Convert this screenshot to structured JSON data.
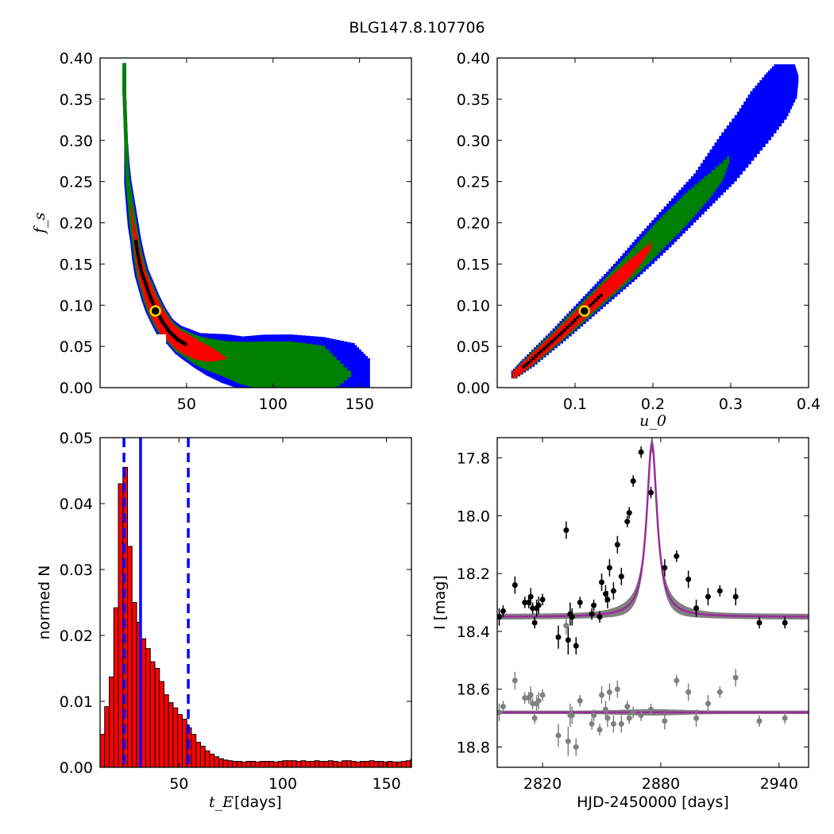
{
  "figure": {
    "title": "BLG147.8.107706"
  },
  "colors": {
    "blue": "#0000ff",
    "green": "#008000",
    "red": "#ff0000",
    "black": "#000000",
    "marker": "#ffd700",
    "hist": "#ff0000",
    "model": "#9b2c9b",
    "model_band": "#808080",
    "data1": "#000000",
    "data2": "#808080"
  },
  "chart_data": [
    {
      "id": "tE_vs_fs",
      "type": "heatmap",
      "title": "",
      "xlabel": "",
      "ylabel": "f_s",
      "xlim": [
        0,
        180
      ],
      "ylim": [
        0.0,
        0.4
      ],
      "xticks": [
        50,
        100,
        150
      ],
      "yticks": [
        0.0,
        0.05,
        0.1,
        0.15,
        0.2,
        0.25,
        0.3,
        0.35,
        0.4
      ],
      "ytick_labels": [
        "0.00",
        "0.05",
        "0.10",
        "0.15",
        "0.20",
        "0.25",
        "0.30",
        "0.35",
        "0.40"
      ],
      "levels": [
        "blue",
        "green",
        "red",
        "black"
      ],
      "best_fit": {
        "x": 32,
        "y": 0.093
      },
      "ridge": [
        {
          "x": 14,
          "y": 0.39,
          "w": [
            1,
            1,
            0,
            0
          ]
        },
        {
          "x": 14,
          "y": 0.36,
          "w": [
            1,
            1,
            0,
            0
          ]
        },
        {
          "x": 14.5,
          "y": 0.33,
          "w": [
            1,
            1,
            0,
            0
          ]
        },
        {
          "x": 15,
          "y": 0.3,
          "w": [
            1,
            1,
            0,
            0
          ]
        },
        {
          "x": 15.5,
          "y": 0.27,
          "w": [
            1.5,
            1,
            0,
            0
          ]
        },
        {
          "x": 16,
          "y": 0.25,
          "w": [
            2,
            1.2,
            0,
            0
          ]
        },
        {
          "x": 17.5,
          "y": 0.225,
          "w": [
            2.5,
            1.5,
            0,
            0
          ]
        },
        {
          "x": 19,
          "y": 0.2,
          "w": [
            3,
            2,
            0.5,
            0
          ]
        },
        {
          "x": 20.5,
          "y": 0.18,
          "w": [
            3,
            2,
            1,
            0
          ]
        },
        {
          "x": 22,
          "y": 0.16,
          "w": [
            3.5,
            2.5,
            1.5,
            0.5
          ]
        },
        {
          "x": 24,
          "y": 0.14,
          "w": [
            4,
            3,
            2,
            0.8
          ]
        },
        {
          "x": 26.5,
          "y": 0.125,
          "w": [
            4.5,
            3.5,
            2.5,
            0.8
          ]
        },
        {
          "x": 29,
          "y": 0.11,
          "w": [
            5,
            4,
            3,
            1
          ]
        },
        {
          "x": 32,
          "y": 0.095,
          "w": [
            5.5,
            4.5,
            3.5,
            1
          ]
        },
        {
          "x": 36,
          "y": 0.08,
          "w": [
            6,
            5,
            4,
            1
          ]
        },
        {
          "x": 40,
          "y": 0.068,
          "w": [
            7,
            5.5,
            4.5,
            1
          ]
        },
        {
          "x": 45,
          "y": 0.058,
          "w": [
            8,
            6.5,
            5,
            1
          ]
        },
        {
          "x": 50,
          "y": 0.052,
          "w": [
            9,
            7,
            5.5,
            0
          ]
        },
        {
          "x": 56,
          "y": 0.045,
          "w": [
            10,
            8,
            5,
            0
          ]
        },
        {
          "x": 63,
          "y": 0.04,
          "w": [
            12,
            9,
            4,
            0
          ]
        },
        {
          "x": 72,
          "y": 0.035,
          "w": [
            14,
            10,
            0,
            0
          ]
        },
        {
          "x": 82,
          "y": 0.03,
          "w": [
            15,
            12,
            0,
            0
          ]
        },
        {
          "x": 95,
          "y": 0.026,
          "w": [
            18,
            14,
            0,
            0
          ]
        },
        {
          "x": 110,
          "y": 0.022,
          "w": [
            20,
            16,
            0,
            0
          ]
        },
        {
          "x": 128,
          "y": 0.019,
          "w": [
            20,
            15,
            0,
            0
          ]
        },
        {
          "x": 145,
          "y": 0.016,
          "w": [
            18,
            0,
            0,
            0
          ]
        },
        {
          "x": 155,
          "y": 0.016,
          "w": [
            8,
            0,
            0,
            0
          ]
        }
      ]
    },
    {
      "id": "u0_vs_fs",
      "type": "heatmap",
      "title": "",
      "xlabel": "u_0",
      "ylabel": "",
      "xlim": [
        0.0,
        0.4
      ],
      "ylim": [
        0.0,
        0.4
      ],
      "xticks": [
        0.1,
        0.2,
        0.3,
        0.4
      ],
      "xtick_labels": [
        "0.1",
        "0.2",
        "0.3",
        "0.4"
      ],
      "yticks": [
        0.0,
        0.05,
        0.1,
        0.15,
        0.2,
        0.25,
        0.3,
        0.35,
        0.4
      ],
      "ytick_labels": [
        "0.00",
        "0.05",
        "0.10",
        "0.15",
        "0.20",
        "0.25",
        "0.30",
        "0.35",
        "0.40"
      ],
      "levels": [
        "blue",
        "green",
        "red",
        "black"
      ],
      "best_fit": {
        "x": 0.112,
        "y": 0.093
      },
      "band": [
        {
          "x": 0.022,
          "y": 0.016,
          "w": [
            0.004,
            0.003,
            0.002,
            0
          ]
        },
        {
          "x": 0.04,
          "y": 0.03,
          "w": [
            0.008,
            0.006,
            0.004,
            0.001
          ]
        },
        {
          "x": 0.06,
          "y": 0.047,
          "w": [
            0.01,
            0.008,
            0.005,
            0.002
          ]
        },
        {
          "x": 0.08,
          "y": 0.064,
          "w": [
            0.012,
            0.009,
            0.006,
            0.002
          ]
        },
        {
          "x": 0.1,
          "y": 0.082,
          "w": [
            0.014,
            0.011,
            0.007,
            0.002
          ]
        },
        {
          "x": 0.12,
          "y": 0.1,
          "w": [
            0.016,
            0.012,
            0.008,
            0.002
          ]
        },
        {
          "x": 0.14,
          "y": 0.118,
          "w": [
            0.018,
            0.013,
            0.009,
            0
          ]
        },
        {
          "x": 0.16,
          "y": 0.136,
          "w": [
            0.02,
            0.015,
            0.009,
            0
          ]
        },
        {
          "x": 0.18,
          "y": 0.155,
          "w": [
            0.022,
            0.016,
            0.006,
            0
          ]
        },
        {
          "x": 0.2,
          "y": 0.175,
          "w": [
            0.024,
            0.017,
            0,
            0
          ]
        },
        {
          "x": 0.22,
          "y": 0.195,
          "w": [
            0.025,
            0.018,
            0,
            0
          ]
        },
        {
          "x": 0.24,
          "y": 0.215,
          "w": [
            0.026,
            0.017,
            0,
            0
          ]
        },
        {
          "x": 0.26,
          "y": 0.235,
          "w": [
            0.027,
            0.015,
            0,
            0
          ]
        },
        {
          "x": 0.28,
          "y": 0.255,
          "w": [
            0.028,
            0.01,
            0,
            0
          ]
        },
        {
          "x": 0.3,
          "y": 0.28,
          "w": [
            0.03,
            0,
            0,
            0
          ]
        },
        {
          "x": 0.32,
          "y": 0.305,
          "w": [
            0.032,
            0,
            0,
            0
          ]
        },
        {
          "x": 0.34,
          "y": 0.33,
          "w": [
            0.032,
            0,
            0,
            0
          ]
        },
        {
          "x": 0.355,
          "y": 0.355,
          "w": [
            0.03,
            0,
            0,
            0
          ]
        },
        {
          "x": 0.365,
          "y": 0.375,
          "w": [
            0.022,
            0,
            0,
            0
          ]
        },
        {
          "x": 0.37,
          "y": 0.39,
          "w": [
            0.012,
            0,
            0,
            0
          ]
        }
      ]
    },
    {
      "id": "tE_histogram",
      "type": "bar",
      "title": "",
      "xlabel": "t_E",
      "xlabel_suffix": " [days]",
      "ylabel": "normed N",
      "xlim": [
        12,
        162
      ],
      "ylim": [
        0.0,
        0.05
      ],
      "xticks": [
        50,
        100,
        150
      ],
      "yticks": [
        0.0,
        0.01,
        0.02,
        0.03,
        0.04,
        0.05
      ],
      "ytick_labels": [
        "0.00",
        "0.01",
        "0.02",
        "0.03",
        "0.04",
        "0.05"
      ],
      "bin_start": 12,
      "bin_width": 2.2,
      "values": [
        0.005,
        0.0092,
        0.0137,
        0.0242,
        0.043,
        0.0455,
        0.0335,
        0.025,
        0.022,
        0.0195,
        0.018,
        0.016,
        0.015,
        0.013,
        0.011,
        0.0098,
        0.009,
        0.008,
        0.0073,
        0.006,
        0.005,
        0.0038,
        0.0032,
        0.0025,
        0.002,
        0.0016,
        0.0013,
        0.0011,
        0.001,
        0.0009,
        0.0009,
        0.0008,
        0.0009,
        0.0009,
        0.0008,
        0.0009,
        0.0009,
        0.0009,
        0.0008,
        0.0009,
        0.001,
        0.001,
        0.001,
        0.0009,
        0.001,
        0.0009,
        0.0009,
        0.001,
        0.0009,
        0.0009,
        0.001,
        0.0009,
        0.0008,
        0.001,
        0.001,
        0.0009,
        0.0008,
        0.0009,
        0.0009,
        0.001,
        0.0009,
        0.0009,
        0.0008,
        0.0009,
        0.0008,
        0.0008,
        0.0009,
        0.001,
        0.0012,
        0.0011,
        0.0009,
        0.0007,
        0.0006,
        0.0005,
        0.0004,
        0.0004,
        0.0002,
        0.0002
      ],
      "median_line": 31.5,
      "dashed_lines": [
        23.5,
        54.5
      ]
    },
    {
      "id": "lightcurve",
      "type": "scatter",
      "title": "",
      "xlabel": "HJD-2450000 [days]",
      "ylabel": "I [mag]",
      "xlim": [
        2797,
        2955
      ],
      "ylim": [
        18.87,
        17.73
      ],
      "xticks": [
        2820,
        2880,
        2940
      ],
      "yticks": [
        17.8,
        18.0,
        18.2,
        18.4,
        18.6,
        18.8
      ],
      "ytick_labels": [
        "17.8",
        "18.0",
        "18.2",
        "18.4",
        "18.6",
        "18.8"
      ],
      "model": {
        "t0": 2875.5,
        "baseline": 18.35,
        "amplitude": 0.6,
        "width": 3.2,
        "residual_level": 18.68
      },
      "series": [
        {
          "points": [
            [
              2798,
              18.35,
              0.03
            ],
            [
              2800,
              18.33,
              0.02
            ],
            [
              2806,
              18.24,
              0.03
            ],
            [
              2811,
              18.3,
              0.02
            ],
            [
              2813,
              18.3,
              0.02
            ],
            [
              2814,
              18.28,
              0.03
            ],
            [
              2815,
              18.32,
              0.02
            ],
            [
              2816,
              18.37,
              0.02
            ],
            [
              2817,
              18.32,
              0.03
            ],
            [
              2818,
              18.31,
              0.03
            ],
            [
              2820,
              18.29,
              0.02
            ],
            [
              2828,
              18.42,
              0.04
            ],
            [
              2832,
              18.05,
              0.03
            ],
            [
              2833,
              18.43,
              0.05
            ],
            [
              2834,
              18.34,
              0.04
            ],
            [
              2835,
              18.35,
              0.03
            ],
            [
              2837,
              18.45,
              0.03
            ],
            [
              2839,
              18.3,
              0.02
            ],
            [
              2845,
              18.34,
              0.02
            ],
            [
              2846,
              18.31,
              0.02
            ],
            [
              2849,
              18.35,
              0.02
            ],
            [
              2850,
              18.23,
              0.03
            ],
            [
              2852,
              18.27,
              0.03
            ],
            [
              2853,
              18.29,
              0.03
            ],
            [
              2854,
              18.18,
              0.03
            ],
            [
              2856,
              18.26,
              0.03
            ],
            [
              2858,
              18.1,
              0.03
            ],
            [
              2860,
              18.21,
              0.03
            ],
            [
              2863,
              18.02,
              0.02
            ],
            [
              2864,
              17.99,
              0.02
            ],
            [
              2866,
              17.88,
              0.02
            ],
            [
              2870,
              17.78,
              0.02
            ],
            [
              2875,
              17.92,
              0.02
            ],
            [
              2882,
              18.18,
              0.03
            ],
            [
              2888,
              18.14,
              0.02
            ],
            [
              2894,
              18.22,
              0.03
            ],
            [
              2898,
              18.32,
              0.03
            ],
            [
              2904,
              18.28,
              0.03
            ],
            [
              2910,
              18.26,
              0.02
            ],
            [
              2918,
              18.28,
              0.03
            ],
            [
              2930,
              18.37,
              0.02
            ],
            [
              2943,
              18.37,
              0.02
            ]
          ]
        },
        {
          "points": [
            [
              2798,
              18.68,
              0.03
            ],
            [
              2800,
              18.66,
              0.02
            ],
            [
              2806,
              18.57,
              0.03
            ],
            [
              2811,
              18.63,
              0.02
            ],
            [
              2813,
              18.63,
              0.02
            ],
            [
              2814,
              18.62,
              0.03
            ],
            [
              2815,
              18.65,
              0.02
            ],
            [
              2816,
              18.7,
              0.02
            ],
            [
              2817,
              18.65,
              0.03
            ],
            [
              2818,
              18.64,
              0.03
            ],
            [
              2820,
              18.62,
              0.02
            ],
            [
              2828,
              18.76,
              0.04
            ],
            [
              2832,
              18.38,
              0.03
            ],
            [
              2833,
              18.78,
              0.05
            ],
            [
              2834,
              18.69,
              0.04
            ],
            [
              2835,
              18.69,
              0.03
            ],
            [
              2837,
              18.8,
              0.03
            ],
            [
              2839,
              18.64,
              0.02
            ],
            [
              2845,
              18.72,
              0.02
            ],
            [
              2846,
              18.69,
              0.02
            ],
            [
              2849,
              18.74,
              0.02
            ],
            [
              2850,
              18.62,
              0.03
            ],
            [
              2852,
              18.67,
              0.03
            ],
            [
              2853,
              18.7,
              0.03
            ],
            [
              2854,
              18.61,
              0.03
            ],
            [
              2856,
              18.72,
              0.03
            ],
            [
              2858,
              18.6,
              0.03
            ],
            [
              2860,
              18.72,
              0.03
            ],
            [
              2863,
              18.66,
              0.02
            ],
            [
              2864,
              18.7,
              0.02
            ],
            [
              2866,
              18.68,
              0.02
            ],
            [
              2870,
              18.69,
              0.02
            ],
            [
              2875,
              18.67,
              0.02
            ],
            [
              2882,
              18.71,
              0.03
            ],
            [
              2888,
              18.57,
              0.02
            ],
            [
              2894,
              18.61,
              0.03
            ],
            [
              2898,
              18.7,
              0.03
            ],
            [
              2904,
              18.65,
              0.03
            ],
            [
              2910,
              18.61,
              0.02
            ],
            [
              2918,
              18.56,
              0.03
            ],
            [
              2930,
              18.71,
              0.02
            ],
            [
              2943,
              18.7,
              0.02
            ]
          ]
        }
      ]
    }
  ]
}
